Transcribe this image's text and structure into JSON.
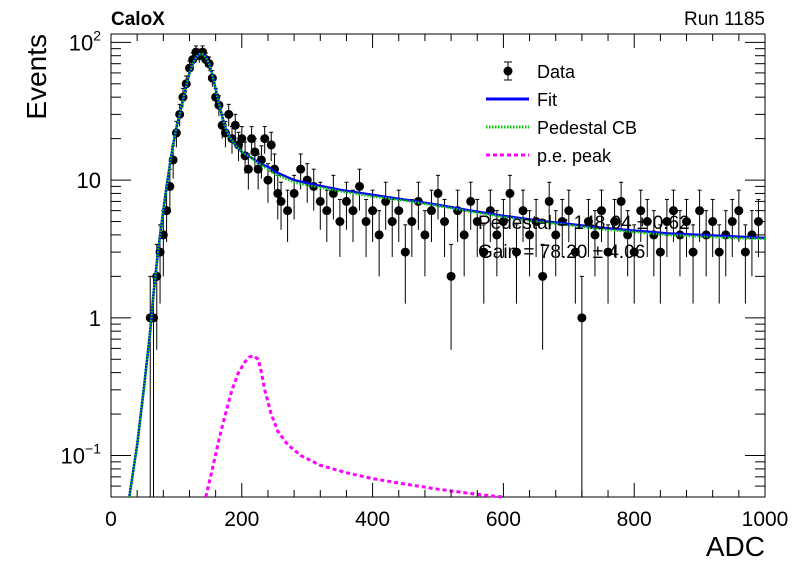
{
  "header": {
    "experiment": "CaloX",
    "run": "Run 1185"
  },
  "chart_data": {
    "type": "scatter",
    "xlabel": "ADC",
    "ylabel": "Events",
    "xlim": [
      0,
      1000
    ],
    "ylim": [
      0.05,
      115
    ],
    "yscale": "log",
    "grid": false,
    "legend_position": "top-right",
    "x_ticks": [
      {
        "value": 0,
        "label": "0"
      },
      {
        "value": 200,
        "label": "200"
      },
      {
        "value": 400,
        "label": "400"
      },
      {
        "value": 600,
        "label": "600"
      },
      {
        "value": 800,
        "label": "800"
      },
      {
        "value": 1000,
        "label": "1000"
      }
    ],
    "y_ticks": [
      {
        "value": 0.1,
        "base": "10",
        "exp": "−1"
      },
      {
        "value": 1,
        "base": "1",
        "exp": ""
      },
      {
        "value": 10,
        "base": "10",
        "exp": ""
      },
      {
        "value": 100,
        "base": "10",
        "exp": "2"
      }
    ],
    "legend": [
      {
        "label": "Data",
        "style": "marker",
        "color": "#000000"
      },
      {
        "label": "Fit",
        "style": "solid",
        "color": "#0000ff"
      },
      {
        "label": "Pedestal CB",
        "style": "dotted",
        "color": "#00cc00"
      },
      {
        "label": "p.e. peak",
        "style": "dashed",
        "color": "#ff00ff"
      }
    ],
    "annotations": [
      "Pedestal = 148.04 ± 0.62",
      "Gain = 78.20 ± 4.06"
    ],
    "series": [
      {
        "name": "Data",
        "type": "scatter",
        "color": "#000000",
        "x": [
          60,
          65,
          70,
          75,
          80,
          85,
          90,
          95,
          100,
          105,
          110,
          115,
          120,
          125,
          130,
          135,
          140,
          145,
          150,
          155,
          160,
          165,
          170,
          175,
          180,
          185,
          190,
          195,
          200,
          205,
          210,
          215,
          220,
          225,
          230,
          235,
          240,
          245,
          250,
          255,
          260,
          270,
          280,
          290,
          300,
          310,
          320,
          330,
          340,
          350,
          360,
          370,
          380,
          390,
          400,
          410,
          420,
          430,
          440,
          450,
          460,
          470,
          480,
          490,
          500,
          510,
          520,
          530,
          540,
          550,
          560,
          570,
          580,
          590,
          600,
          610,
          620,
          630,
          640,
          650,
          660,
          670,
          680,
          690,
          700,
          710,
          720,
          730,
          740,
          750,
          760,
          770,
          780,
          790,
          800,
          810,
          820,
          830,
          840,
          850,
          860,
          870,
          880,
          890,
          900,
          910,
          920,
          930,
          940,
          950,
          960,
          970,
          980,
          990
        ],
        "y": [
          1,
          1,
          2,
          3,
          4,
          6,
          9,
          14,
          22,
          30,
          40,
          50,
          65,
          75,
          85,
          80,
          85,
          75,
          70,
          55,
          40,
          35,
          25,
          22,
          30,
          20,
          25,
          18,
          20,
          15,
          12,
          20,
          16,
          12,
          14,
          20,
          10,
          18,
          12,
          8,
          7,
          6,
          8,
          12,
          10,
          9,
          7,
          6,
          8,
          5,
          7,
          6,
          9,
          5,
          6,
          4,
          7,
          5,
          6,
          3,
          5,
          7,
          4,
          6,
          8,
          5,
          2,
          6,
          4,
          7,
          5,
          3,
          6,
          4,
          5,
          8,
          3,
          6,
          4,
          5,
          2,
          7,
          4,
          5,
          6,
          3,
          1,
          5,
          4,
          6,
          3,
          5,
          7,
          4,
          3,
          6,
          5,
          4,
          3,
          5,
          6,
          4,
          5,
          3,
          6,
          4,
          5,
          3,
          4,
          5,
          6,
          3,
          4,
          5
        ]
      },
      {
        "name": "Fit",
        "type": "line",
        "color": "#0000ff",
        "x": [
          28,
          40,
          50,
          60,
          65,
          70,
          75,
          80,
          85,
          90,
          95,
          100,
          105,
          110,
          115,
          120,
          125,
          130,
          135,
          140,
          145,
          150,
          155,
          160,
          165,
          170,
          175,
          180,
          190,
          200,
          210,
          220,
          230,
          240,
          250,
          260,
          280,
          300,
          350,
          400,
          450,
          500,
          550,
          600,
          650,
          700,
          750,
          800,
          850,
          900,
          950,
          1000
        ],
        "y": [
          0.05,
          0.12,
          0.3,
          0.8,
          1.5,
          2.5,
          4,
          6,
          9,
          13,
          18,
          24,
          30,
          38,
          48,
          60,
          70,
          78,
          82,
          82,
          78,
          70,
          58,
          46,
          36,
          29,
          24,
          21,
          18,
          16,
          15,
          14,
          13,
          12.5,
          11.5,
          11,
          10,
          9.5,
          8.5,
          7.8,
          7.2,
          6.6,
          6.0,
          5.5,
          5.1,
          4.8,
          4.5,
          4.3,
          4.1,
          4.0,
          3.9,
          3.8
        ]
      },
      {
        "name": "Pedestal CB",
        "type": "line",
        "color": "#00cc00",
        "x": [
          28,
          40,
          50,
          60,
          65,
          70,
          75,
          80,
          85,
          90,
          95,
          100,
          105,
          110,
          115,
          120,
          125,
          130,
          135,
          140,
          145,
          150,
          155,
          160,
          165,
          170,
          175,
          180,
          190,
          200,
          210,
          220,
          230,
          240,
          250,
          260,
          280,
          300,
          350,
          400,
          450,
          500,
          550,
          600,
          650,
          700,
          750,
          800,
          850,
          900,
          950,
          1000
        ],
        "y": [
          0.05,
          0.12,
          0.3,
          0.8,
          1.5,
          2.5,
          4,
          6,
          9,
          13,
          18,
          24,
          30,
          38,
          48,
          60,
          70,
          78,
          82,
          82,
          78,
          70,
          58,
          46,
          36,
          29,
          24,
          21,
          18,
          16,
          15,
          13.8,
          12.8,
          12,
          11.1,
          10.6,
          9.6,
          9.2,
          8.3,
          7.6,
          7.1,
          6.5,
          5.9,
          5.4,
          5.0,
          4.7,
          4.4,
          4.2,
          4.0,
          3.9,
          3.8,
          3.75
        ]
      },
      {
        "name": "p.e. peak",
        "type": "line",
        "color": "#ff00ff",
        "x": [
          145,
          155,
          165,
          175,
          185,
          195,
          205,
          212,
          218,
          225,
          230,
          235,
          245,
          255,
          270,
          290,
          320,
          360,
          400,
          450,
          500,
          550,
          580,
          600
        ],
        "y": [
          0.05,
          0.08,
          0.13,
          0.2,
          0.3,
          0.4,
          0.48,
          0.52,
          0.53,
          0.5,
          0.4,
          0.3,
          0.2,
          0.15,
          0.12,
          0.1,
          0.085,
          0.075,
          0.068,
          0.062,
          0.057,
          0.053,
          0.051,
          0.05
        ]
      }
    ]
  }
}
